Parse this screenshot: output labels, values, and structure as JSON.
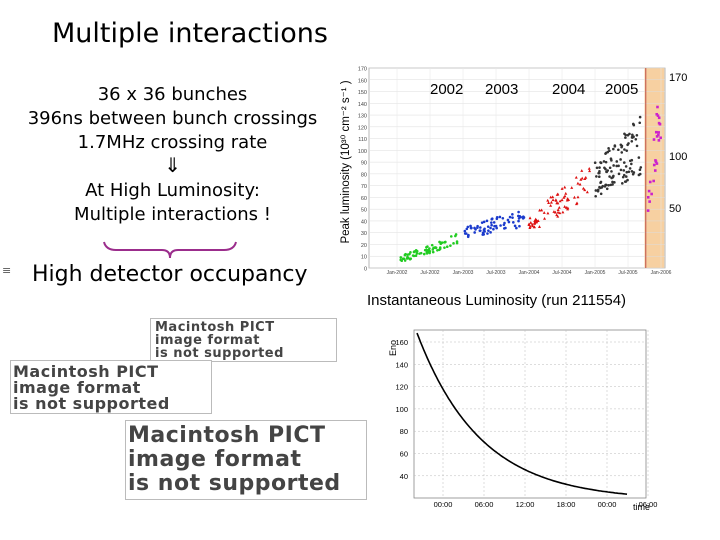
{
  "slide": {
    "title": "Multiple interactions",
    "lines": {
      "bunches": "36 x 36 bunches",
      "spacing": "396ns between bunch crossings",
      "rate": "1.7MHz crossing rate",
      "arrow": "⇓",
      "high_lumi": "At High Luminosity:",
      "multi": "Multiple interactions !"
    },
    "occupancy": "High detector occupancy",
    "bullet": "≡",
    "pict_placeholder": [
      "Macintosh PICT",
      "image format",
      "is not supported"
    ]
  },
  "peak_chart": {
    "ylabel": "Peak luminosity (10³⁰ cm⁻² s⁻¹ )",
    "ymin": 0,
    "ymax": 170,
    "yticks": [
      0,
      10,
      20,
      30,
      40,
      50,
      60,
      70,
      80,
      90,
      100,
      110,
      120,
      130,
      140,
      150,
      160,
      170
    ],
    "year_labels": [
      "2002",
      "2003",
      "2004",
      "2005"
    ],
    "xticks": [
      "Jan-2002",
      "Jul-2002",
      "Jan-2003",
      "Jul-2003",
      "Jan-2004",
      "Jul-2004",
      "Jan-2005",
      "Jul-2005",
      "Jan-2006"
    ],
    "right_ticks": [
      "170",
      "100",
      "50"
    ],
    "colors": {
      "2002": "#22cc22",
      "2003": "#1a3acc",
      "2004": "#dd1111",
      "2005": "#333333",
      "2006": "#cc22cc",
      "band": "#f5c48a"
    }
  },
  "lumi_chart": {
    "title": "Instantaneous Luminosity (run 211554)",
    "ylabel": "Eno",
    "xlabel": "time",
    "yticks": [
      "160",
      "140",
      "120",
      "100",
      "80",
      "60",
      "40"
    ],
    "xticks": [
      "00:00",
      "06:00",
      "12:00",
      "18:00",
      "00:00",
      "06:00"
    ]
  }
}
